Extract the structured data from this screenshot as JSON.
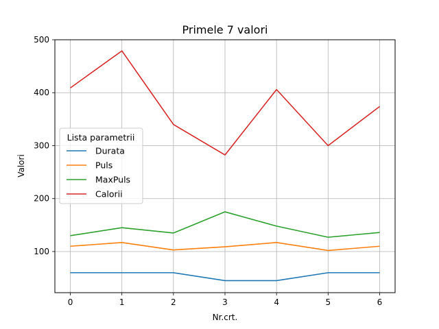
{
  "chart_data": {
    "type": "line",
    "title": "Primele 7 valori",
    "xlabel": "Nr.crt.",
    "ylabel": "Valori",
    "x": [
      0,
      1,
      2,
      3,
      4,
      5,
      6
    ],
    "xlim": [
      -0.3,
      6.3
    ],
    "ylim": [
      22.3,
      500
    ],
    "xticks": [
      0,
      1,
      2,
      3,
      4,
      5,
      6
    ],
    "yticks": [
      100,
      200,
      300,
      400,
      500
    ],
    "grid": true,
    "legend": {
      "title": "Lista parametrii",
      "placement": "center-left"
    },
    "series": [
      {
        "name": "Durata",
        "color": "#1f77b4",
        "values": [
          60,
          60,
          60,
          45,
          45,
          60,
          60
        ]
      },
      {
        "name": "Puls",
        "color": "#ff7f0e",
        "values": [
          110,
          117,
          103,
          109,
          117,
          102,
          110
        ]
      },
      {
        "name": "MaxPuls",
        "color": "#2ca02c",
        "values": [
          130,
          145,
          135,
          175,
          148,
          127,
          136
        ]
      },
      {
        "name": "Calorii",
        "color": "#d62728",
        "values": [
          409.1,
          479.0,
          340.0,
          282.4,
          406.0,
          300.0,
          374.0
        ]
      }
    ]
  }
}
